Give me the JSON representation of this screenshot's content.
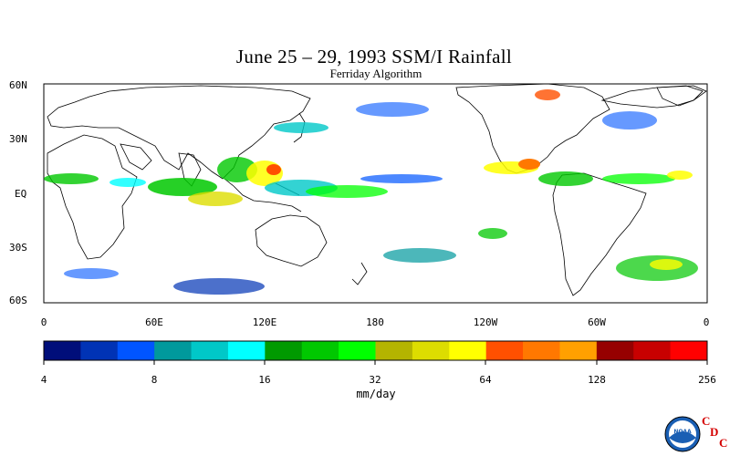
{
  "title": "June 25 – 29, 1993 SSM/I Rainfall",
  "subtitle": "Ferriday Algorithm",
  "lat_labels": [
    "60N",
    "30N",
    "EQ",
    "30S",
    "60S"
  ],
  "lon_labels": [
    "0",
    "60E",
    "120E",
    "180",
    "120W",
    "60W",
    "0"
  ],
  "colorbar": {
    "units": "mm/day",
    "tick_labels": [
      "4",
      "8",
      "16",
      "32",
      "64",
      "128",
      "256"
    ],
    "colors": [
      "#000e7a",
      "#0033b5",
      "#0055ff",
      "#00999c",
      "#00c8c8",
      "#00ffff",
      "#009a00",
      "#00c800",
      "#00ff00",
      "#b4b400",
      "#dddd00",
      "#ffff00",
      "#ff5000",
      "#ff7800",
      "#ffa000",
      "#960000",
      "#c80000",
      "#ff0000"
    ]
  },
  "logo": {
    "text": "NOAA",
    "letters": [
      "C",
      "D",
      "C"
    ]
  }
}
